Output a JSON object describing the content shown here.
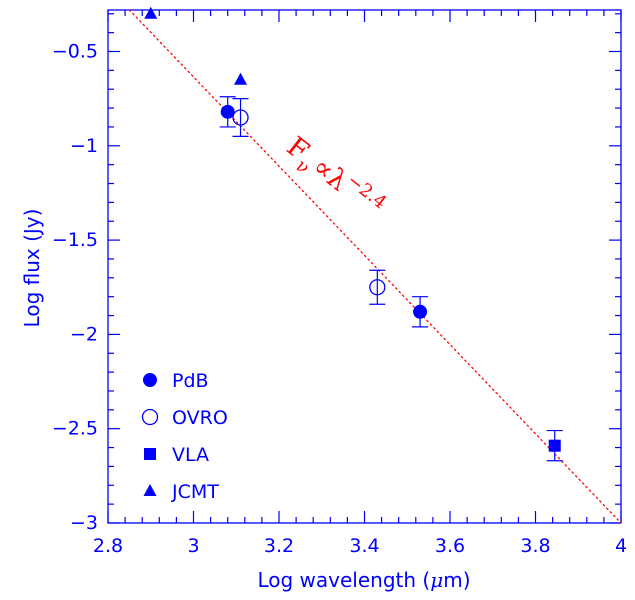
{
  "chart_data": {
    "type": "scatter",
    "xlabel_prefix": "Log wavelength (",
    "xlabel_symbol": "μ",
    "xlabel_suffix": "m)",
    "ylabel": "Log flux (Jy)",
    "xlim": [
      2.8,
      4.0
    ],
    "ylim": [
      -3.0,
      -0.28
    ],
    "x_ticks": [
      2.8,
      3.0,
      3.2,
      3.4,
      3.6,
      3.8,
      4.0
    ],
    "x_tick_labels": [
      "2.8",
      "3",
      "3.2",
      "3.4",
      "3.6",
      "3.8",
      "4"
    ],
    "y_ticks": [
      -3.0,
      -2.5,
      -2.0,
      -1.5,
      -1.0,
      -0.5
    ],
    "y_tick_labels": [
      "−3",
      "−2.5",
      "−2",
      "−1.5",
      "−1",
      "−0.5"
    ],
    "grid": false,
    "legend_placement": "bottom-left",
    "colors": {
      "axes": "#0000ff",
      "fit": "#ff0000"
    },
    "series": [
      {
        "name": "PdB",
        "marker": "filled-circle",
        "points": [
          {
            "x": 3.08,
            "y": -0.82,
            "err": 0.08
          },
          {
            "x": 3.53,
            "y": -1.88,
            "err": 0.08
          }
        ]
      },
      {
        "name": "OVRO",
        "marker": "open-circle",
        "points": [
          {
            "x": 3.11,
            "y": -0.85,
            "err": 0.1
          },
          {
            "x": 3.43,
            "y": -1.75,
            "err": 0.09
          }
        ]
      },
      {
        "name": "VLA",
        "marker": "filled-square",
        "points": [
          {
            "x": 3.845,
            "y": -2.59,
            "err": 0.08
          }
        ]
      },
      {
        "name": "JCMT",
        "marker": "filled-triangle",
        "points": [
          {
            "x": 2.9,
            "y": -0.3,
            "err": 0
          },
          {
            "x": 3.11,
            "y": -0.65,
            "err": 0
          }
        ]
      }
    ],
    "fit_line": {
      "style": "dotted",
      "x": [
        2.85,
        4.0
      ],
      "y": [
        -0.28,
        -3.0
      ]
    },
    "annotation": {
      "main": "F",
      "sub": "ν",
      "mid": "∝λ",
      "sup": "−2.4"
    }
  }
}
